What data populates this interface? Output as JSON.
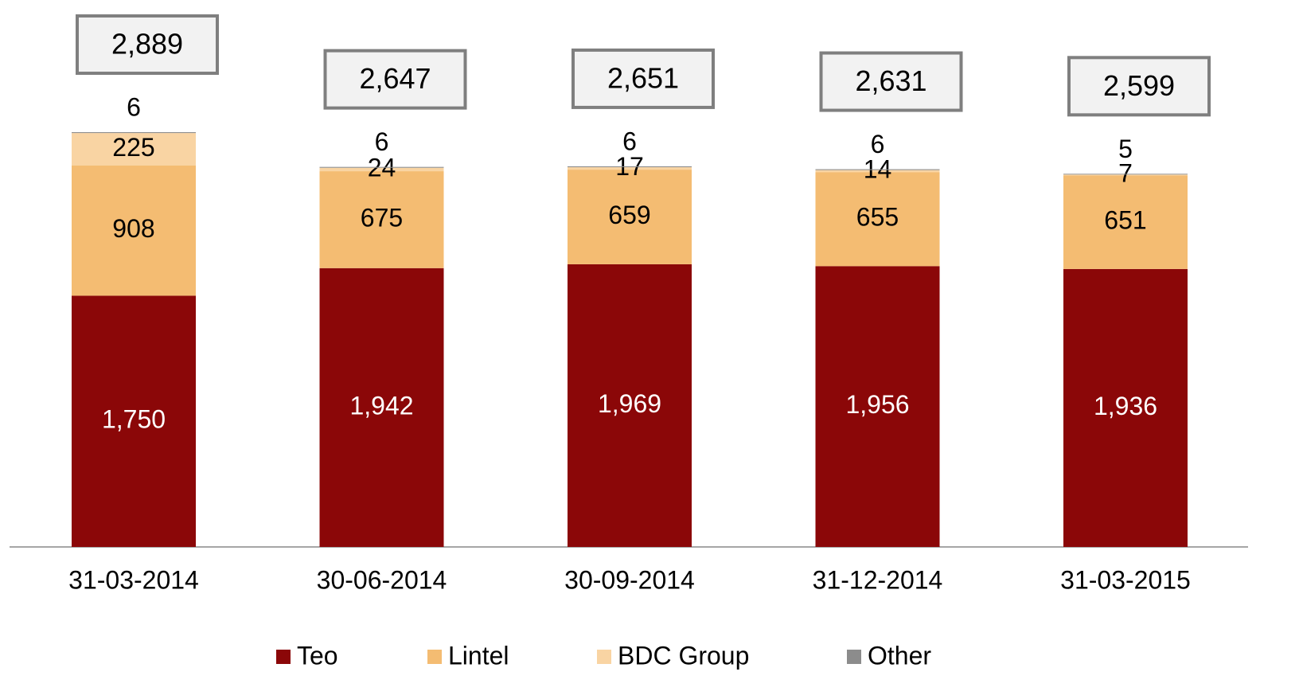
{
  "chart_data": {
    "type": "stacked_bar",
    "categories": [
      "31-03-2014",
      "30-06-2014",
      "30-09-2014",
      "31-12-2014",
      "31-03-2015"
    ],
    "series": [
      {
        "name": "Teo",
        "color": "#8b0708",
        "values": [
          1750,
          1942,
          1969,
          1956,
          1936
        ],
        "value_labels": [
          "1,750",
          "1,942",
          "1,969",
          "1,956",
          "1,936"
        ]
      },
      {
        "name": "Lintel",
        "color": "#f4bc72",
        "values": [
          908,
          675,
          659,
          655,
          651
        ]
      },
      {
        "name": "BDC Group",
        "color": "#f9d4a3",
        "values": [
          225,
          24,
          17,
          14,
          7
        ]
      },
      {
        "name": "Other",
        "color": "#8c8c8c",
        "values": [
          6,
          6,
          6,
          6,
          5
        ]
      }
    ],
    "totals": [
      2889,
      2647,
      2651,
      2631,
      2599
    ],
    "total_labels": [
      "2,889",
      "2,647",
      "2,651",
      "2,631",
      "2,599"
    ],
    "ylim": [
      0,
      3000
    ],
    "legend": "bottom"
  }
}
